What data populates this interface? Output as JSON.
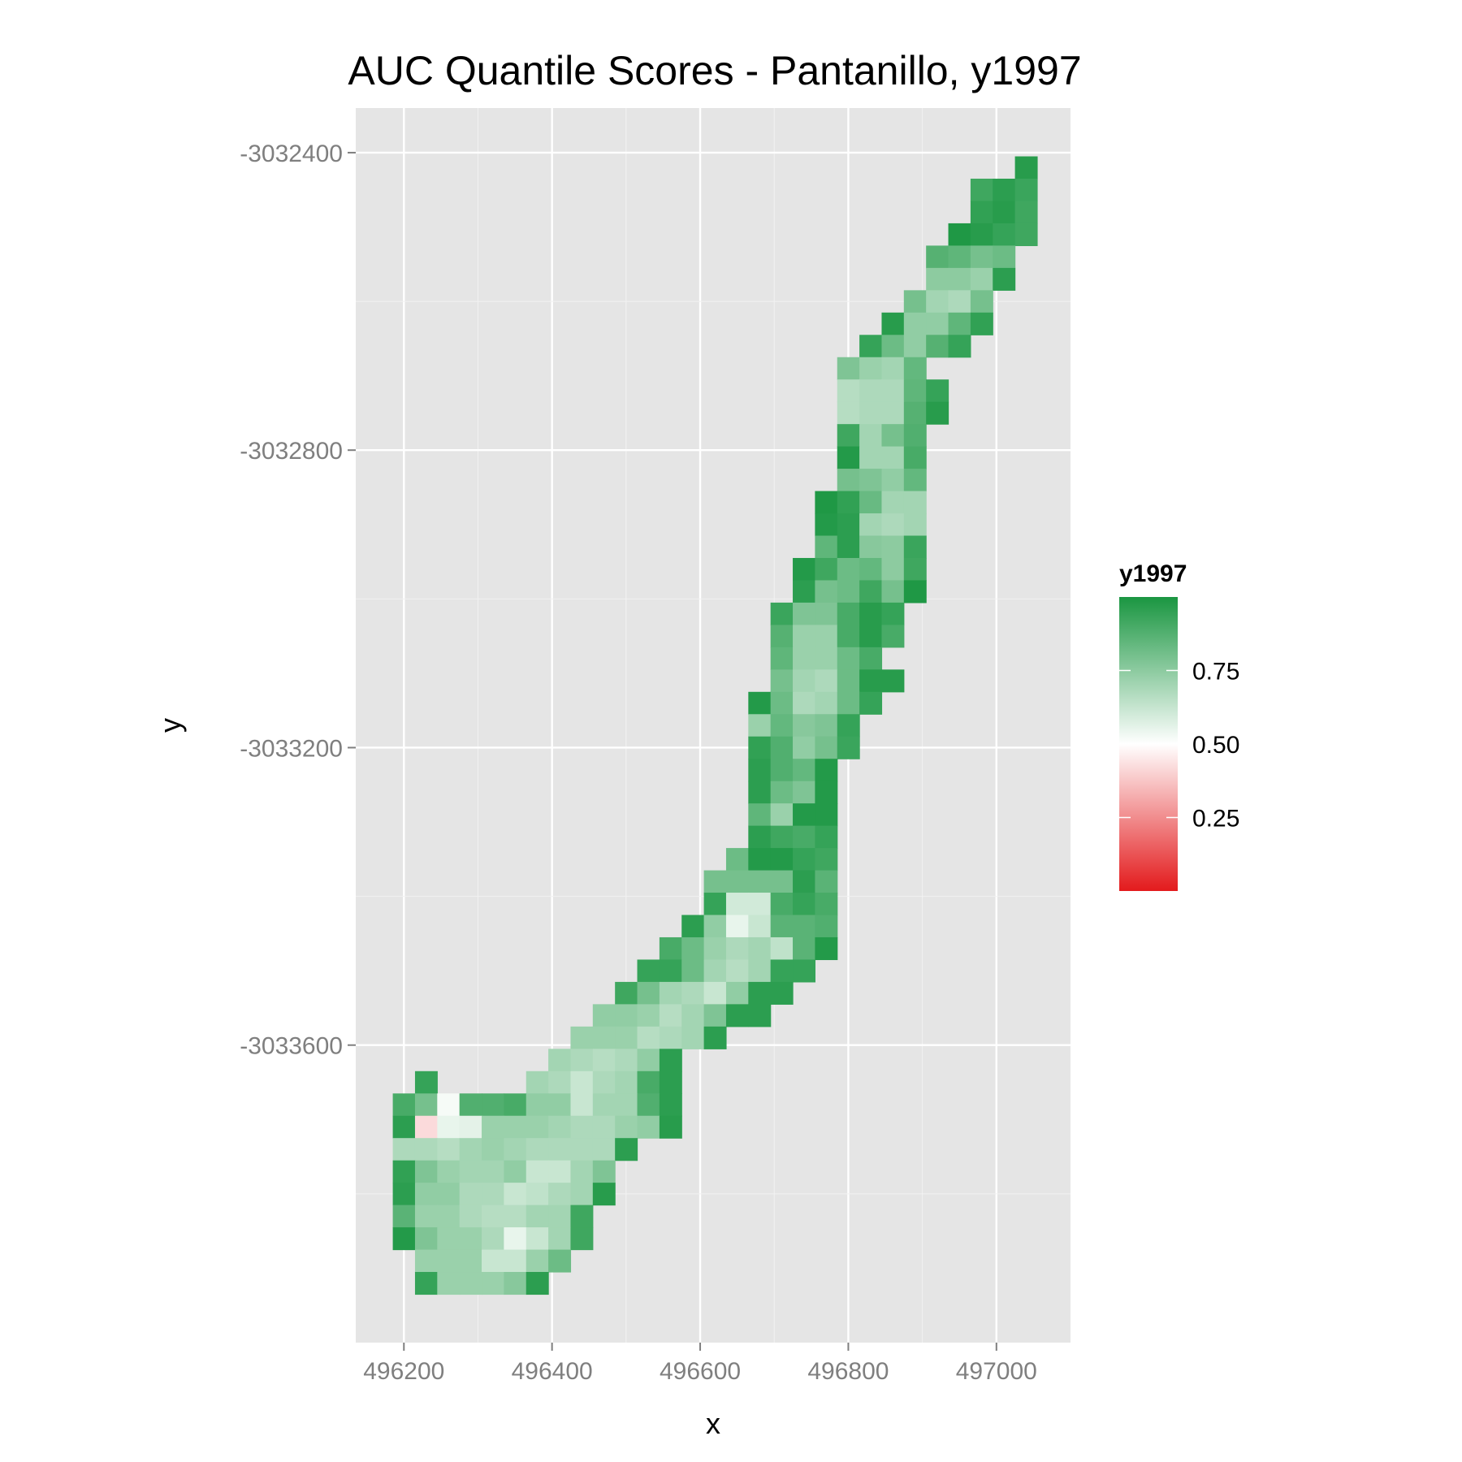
{
  "chart_data": {
    "type": "heatmap",
    "title": "AUC Quantile Scores - Pantanillo, y1997",
    "xlabel": "x",
    "ylabel": "y",
    "x_ticks": [
      496200,
      496400,
      496600,
      496800,
      497000
    ],
    "y_ticks": [
      -3032400,
      -3032800,
      -3033200,
      -3033600
    ],
    "x_tick_labels": [
      "496200",
      "496400",
      "496600",
      "496800",
      "497000"
    ],
    "y_tick_labels": [
      "-3032400",
      "-3032800",
      "-3033200",
      "-3033600"
    ],
    "xlim": [
      496135,
      497100
    ],
    "ylim": [
      -3034000,
      -3032340
    ],
    "grid": true,
    "cell_size": 30,
    "legend": {
      "title": "y1997",
      "position": "right",
      "min": 0.0,
      "max": 1.0,
      "labels": [
        "0.75",
        "0.50",
        "0.25"
      ],
      "label_values": [
        0.75,
        0.5,
        0.25
      ],
      "colors": {
        "low": "#e31a1c",
        "mid": "#ffffff",
        "high": "#1a9641"
      }
    },
    "columns_x": [
      496200,
      496230,
      496260,
      496290,
      496320,
      496350,
      496380,
      496410,
      496440,
      496470,
      496500,
      496530,
      496560,
      496590,
      496620,
      496650,
      496680,
      496710,
      496740,
      496770,
      496800,
      496830,
      496860,
      496890,
      496920,
      496950,
      496980,
      497010,
      497040
    ],
    "rows": [
      {
        "y": -3032420,
        "x0": 497040,
        "v": [
          0.97
        ]
      },
      {
        "y": -3032450,
        "x0": 496980,
        "v": [
          0.92,
          0.96,
          0.93
        ]
      },
      {
        "y": -3032480,
        "x0": 496980,
        "v": [
          0.95,
          0.97,
          0.92
        ]
      },
      {
        "y": -3032510,
        "x0": 496950,
        "v": [
          0.99,
          0.97,
          0.94,
          0.92
        ]
      },
      {
        "y": -3032540,
        "x0": 496920,
        "v": [
          0.87,
          0.85,
          0.8,
          0.82
        ]
      },
      {
        "y": -3032570,
        "x0": 496920,
        "v": [
          0.75,
          0.75,
          0.72,
          0.96
        ]
      },
      {
        "y": -3032600,
        "x0": 496890,
        "v": [
          0.8,
          0.7,
          0.68,
          0.8
        ]
      },
      {
        "y": -3032630,
        "x0": 496860,
        "v": [
          0.97,
          0.74,
          0.74,
          0.85,
          0.95
        ]
      },
      {
        "y": -3032660,
        "x0": 496830,
        "v": [
          0.94,
          0.82,
          0.74,
          0.87,
          0.94
        ]
      },
      {
        "y": -3032690,
        "x0": 496800,
        "v": [
          0.78,
          0.72,
          0.7,
          0.84
        ]
      },
      {
        "y": -3032720,
        "x0": 496800,
        "v": [
          0.66,
          0.68,
          0.68,
          0.85,
          0.94
        ]
      },
      {
        "y": -3032750,
        "x0": 496800,
        "v": [
          0.66,
          0.68,
          0.68,
          0.87,
          0.97
        ]
      },
      {
        "y": -3032780,
        "x0": 496800,
        "v": [
          0.92,
          0.7,
          0.8,
          0.88
        ]
      },
      {
        "y": -3032810,
        "x0": 496800,
        "v": [
          0.98,
          0.7,
          0.7,
          0.9
        ]
      },
      {
        "y": -3032840,
        "x0": 496800,
        "v": [
          0.8,
          0.78,
          0.74,
          0.84
        ]
      },
      {
        "y": -3032870,
        "x0": 496770,
        "v": [
          0.99,
          0.95,
          0.83,
          0.7,
          0.7
        ]
      },
      {
        "y": -3032900,
        "x0": 496770,
        "v": [
          0.98,
          0.96,
          0.7,
          0.68,
          0.7
        ]
      },
      {
        "y": -3032930,
        "x0": 496770,
        "v": [
          0.85,
          0.96,
          0.76,
          0.75,
          0.93
        ]
      },
      {
        "y": -3032960,
        "x0": 496740,
        "v": [
          0.98,
          0.92,
          0.82,
          0.84,
          0.75,
          0.92
        ]
      },
      {
        "y": -3032990,
        "x0": 496740,
        "v": [
          0.96,
          0.8,
          0.82,
          0.92,
          0.8,
          0.99
        ]
      },
      {
        "y": -3033020,
        "x0": 496710,
        "v": [
          0.93,
          0.78,
          0.78,
          0.9,
          0.97,
          0.94
        ]
      },
      {
        "y": -3033050,
        "x0": 496710,
        "v": [
          0.87,
          0.72,
          0.72,
          0.9,
          0.97,
          0.9
        ]
      },
      {
        "y": -3033080,
        "x0": 496710,
        "v": [
          0.85,
          0.72,
          0.72,
          0.82,
          0.9
        ]
      },
      {
        "y": -3033110,
        "x0": 496710,
        "v": [
          0.8,
          0.7,
          0.68,
          0.82,
          0.97,
          0.97
        ]
      },
      {
        "y": -3033140,
        "x0": 496680,
        "v": [
          0.98,
          0.82,
          0.68,
          0.7,
          0.82,
          0.94
        ]
      },
      {
        "y": -3033170,
        "x0": 496680,
        "v": [
          0.72,
          0.84,
          0.76,
          0.78,
          0.94
        ]
      },
      {
        "y": -3033200,
        "x0": 496680,
        "v": [
          0.95,
          0.88,
          0.74,
          0.8,
          0.93
        ]
      },
      {
        "y": -3033230,
        "x0": 496680,
        "v": [
          0.96,
          0.88,
          0.84,
          0.98
        ]
      },
      {
        "y": -3033260,
        "x0": 496680,
        "v": [
          0.96,
          0.82,
          0.78,
          0.98
        ]
      },
      {
        "y": -3033290,
        "x0": 496680,
        "v": [
          0.85,
          0.72,
          0.98,
          0.98
        ]
      },
      {
        "y": -3033320,
        "x0": 496680,
        "v": [
          0.96,
          0.92,
          0.9,
          0.94
        ]
      },
      {
        "y": -3033350,
        "x0": 496650,
        "v": [
          0.82,
          0.98,
          0.98,
          0.94,
          0.92
        ]
      },
      {
        "y": -3033380,
        "x0": 496620,
        "v": [
          0.8,
          0.8,
          0.8,
          0.8,
          0.96,
          0.86
        ]
      },
      {
        "y": -3033410,
        "x0": 496620,
        "v": [
          0.94,
          0.6,
          0.6,
          0.9,
          0.94,
          0.9
        ]
      },
      {
        "y": -3033440,
        "x0": 496590,
        "v": [
          0.96,
          0.74,
          0.55,
          0.62,
          0.86,
          0.86,
          0.88
        ]
      },
      {
        "y": -3033470,
        "x0": 496560,
        "v": [
          0.9,
          0.82,
          0.72,
          0.68,
          0.7,
          0.64,
          0.86,
          0.98
        ]
      },
      {
        "y": -3033500,
        "x0": 496530,
        "v": [
          0.94,
          0.94,
          0.82,
          0.7,
          0.66,
          0.7,
          0.94,
          0.94
        ]
      },
      {
        "y": -3033530,
        "x0": 496500,
        "v": [
          0.92,
          0.8,
          0.7,
          0.68,
          0.62,
          0.74,
          0.96,
          0.96
        ]
      },
      {
        "y": -3033560,
        "x0": 496470,
        "v": [
          0.74,
          0.74,
          0.72,
          0.66,
          0.7,
          0.78,
          0.96,
          0.96
        ]
      },
      {
        "y": -3033590,
        "x0": 496440,
        "v": [
          0.72,
          0.72,
          0.72,
          0.66,
          0.68,
          0.7,
          0.96
        ]
      },
      {
        "y": -3033620,
        "x0": 496410,
        "v": [
          0.7,
          0.68,
          0.66,
          0.68,
          0.74,
          0.96
        ]
      },
      {
        "y": -3033650,
        "x0": 496230,
        "v": [
          0.94
        ]
      },
      {
        "y": -3033650,
        "x0": 496380,
        "v": [
          0.7,
          0.68,
          0.62,
          0.68,
          0.7,
          0.9,
          0.96
        ]
      },
      {
        "y": -3033680,
        "x0": 496200,
        "v": [
          0.9,
          0.8,
          0.52,
          0.88,
          0.88,
          0.9,
          0.74,
          0.74,
          0.62,
          0.7,
          0.7,
          0.88,
          0.96
        ]
      },
      {
        "y": -3033710,
        "x0": 496200,
        "v": [
          0.96,
          0.42,
          0.55,
          0.56,
          0.72,
          0.72,
          0.72,
          0.7,
          0.68,
          0.68,
          0.72,
          0.74,
          0.97
        ]
      },
      {
        "y": -3033740,
        "x0": 496200,
        "v": [
          0.68,
          0.68,
          0.66,
          0.7,
          0.72,
          0.7,
          0.68,
          0.68,
          0.68,
          0.68,
          0.96
        ]
      },
      {
        "y": -3033770,
        "x0": 496200,
        "v": [
          0.95,
          0.78,
          0.72,
          0.7,
          0.7,
          0.74,
          0.62,
          0.62,
          0.7,
          0.78
        ]
      },
      {
        "y": -3033800,
        "x0": 496200,
        "v": [
          0.96,
          0.74,
          0.74,
          0.68,
          0.68,
          0.62,
          0.64,
          0.68,
          0.7,
          0.97
        ]
      },
      {
        "y": -3033830,
        "x0": 496200,
        "v": [
          0.86,
          0.72,
          0.72,
          0.68,
          0.66,
          0.66,
          0.7,
          0.7,
          0.92
        ]
      },
      {
        "y": -3033860,
        "x0": 496200,
        "v": [
          0.98,
          0.78,
          0.72,
          0.72,
          0.68,
          0.55,
          0.62,
          0.7,
          0.92
        ]
      },
      {
        "y": -3033890,
        "x0": 496230,
        "v": [
          0.72,
          0.72,
          0.72,
          0.62,
          0.62,
          0.72,
          0.82
        ]
      },
      {
        "y": -3033920,
        "x0": 496230,
        "v": [
          0.94,
          0.72,
          0.72,
          0.72,
          0.76,
          0.96
        ]
      }
    ]
  }
}
